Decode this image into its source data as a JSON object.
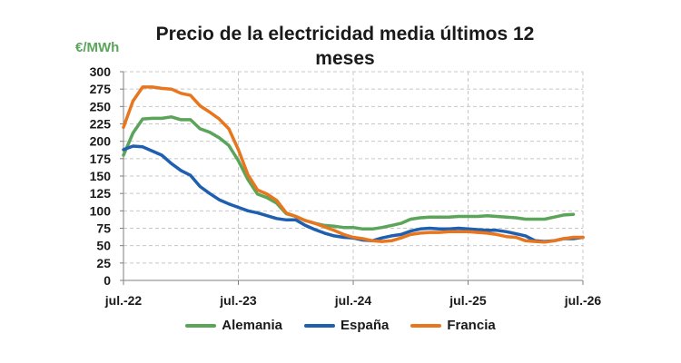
{
  "chart_data": {
    "type": "line",
    "title": "Precio de la electricidad media últimos 12 meses",
    "ylabel": "€/MWh",
    "ylim": [
      0,
      300
    ],
    "yticks": [
      0,
      25,
      50,
      75,
      100,
      125,
      150,
      175,
      200,
      225,
      250,
      275,
      300
    ],
    "xticks": [
      "jul.-22",
      "jul.-23",
      "jul.-24",
      "jul.-25",
      "jul.-26"
    ],
    "x_range_months": [
      "2022-07",
      "2026-07"
    ],
    "grid": true,
    "legend_position": "bottom",
    "series": [
      {
        "name": "Alemania",
        "color": "#5aa55a",
        "values": [
          [
            0,
            180
          ],
          [
            1,
            212
          ],
          [
            2,
            232
          ],
          [
            3,
            233
          ],
          [
            4,
            233
          ],
          [
            5,
            235
          ],
          [
            6,
            231
          ],
          [
            7,
            231
          ],
          [
            8,
            218
          ],
          [
            9,
            213
          ],
          [
            10,
            205
          ],
          [
            11,
            194
          ],
          [
            12,
            172
          ],
          [
            13,
            145
          ],
          [
            14,
            124
          ],
          [
            15,
            119
          ],
          [
            16,
            111
          ],
          [
            17,
            96
          ],
          [
            18,
            92
          ],
          [
            19,
            86
          ],
          [
            20,
            82
          ],
          [
            21,
            79
          ],
          [
            22,
            78
          ],
          [
            23,
            76
          ],
          [
            24,
            76
          ],
          [
            25,
            74
          ],
          [
            26,
            74
          ],
          [
            27,
            76
          ],
          [
            28,
            79
          ],
          [
            29,
            82
          ],
          [
            30,
            88
          ],
          [
            31,
            90
          ],
          [
            32,
            91
          ],
          [
            33,
            91
          ],
          [
            34,
            91
          ],
          [
            35,
            92
          ],
          [
            36,
            92
          ],
          [
            37,
            92
          ],
          [
            38,
            93
          ],
          [
            39,
            92
          ],
          [
            40,
            91
          ],
          [
            41,
            90
          ],
          [
            42,
            88
          ],
          [
            43,
            88
          ],
          [
            44,
            88
          ],
          [
            45,
            91
          ],
          [
            46,
            94
          ],
          [
            47,
            95
          ]
        ]
      },
      {
        "name": "España",
        "color": "#1f5fb0",
        "values": [
          [
            0,
            188
          ],
          [
            1,
            193
          ],
          [
            2,
            192
          ],
          [
            3,
            186
          ],
          [
            4,
            180
          ],
          [
            5,
            168
          ],
          [
            6,
            158
          ],
          [
            7,
            151
          ],
          [
            8,
            135
          ],
          [
            9,
            125
          ],
          [
            10,
            116
          ],
          [
            11,
            110
          ],
          [
            12,
            105
          ],
          [
            13,
            100
          ],
          [
            14,
            97
          ],
          [
            15,
            93
          ],
          [
            16,
            89
          ],
          [
            17,
            87
          ],
          [
            18,
            87
          ],
          [
            19,
            79
          ],
          [
            20,
            73
          ],
          [
            21,
            68
          ],
          [
            22,
            64
          ],
          [
            23,
            62
          ],
          [
            24,
            61
          ],
          [
            25,
            58
          ],
          [
            26,
            57
          ],
          [
            27,
            61
          ],
          [
            28,
            64
          ],
          [
            29,
            66
          ],
          [
            30,
            71
          ],
          [
            31,
            74
          ],
          [
            32,
            75
          ],
          [
            33,
            74
          ],
          [
            34,
            74
          ],
          [
            35,
            75
          ],
          [
            36,
            74
          ],
          [
            37,
            73
          ],
          [
            38,
            72
          ],
          [
            39,
            72
          ],
          [
            40,
            70
          ],
          [
            41,
            67
          ],
          [
            42,
            64
          ],
          [
            43,
            57
          ],
          [
            44,
            56
          ],
          [
            45,
            57
          ],
          [
            46,
            60
          ],
          [
            47,
            60
          ],
          [
            48,
            62
          ]
        ]
      },
      {
        "name": "Francia",
        "color": "#e8761e",
        "values": [
          [
            0,
            220
          ],
          [
            1,
            258
          ],
          [
            2,
            278
          ],
          [
            3,
            278
          ],
          [
            4,
            276
          ],
          [
            5,
            275
          ],
          [
            6,
            269
          ],
          [
            7,
            266
          ],
          [
            8,
            251
          ],
          [
            9,
            242
          ],
          [
            10,
            232
          ],
          [
            11,
            218
          ],
          [
            12,
            188
          ],
          [
            13,
            152
          ],
          [
            14,
            130
          ],
          [
            15,
            124
          ],
          [
            16,
            115
          ],
          [
            17,
            97
          ],
          [
            18,
            92
          ],
          [
            19,
            86
          ],
          [
            20,
            82
          ],
          [
            21,
            77
          ],
          [
            22,
            72
          ],
          [
            23,
            66
          ],
          [
            24,
            62
          ],
          [
            25,
            60
          ],
          [
            26,
            57
          ],
          [
            27,
            56
          ],
          [
            28,
            57
          ],
          [
            29,
            61
          ],
          [
            30,
            66
          ],
          [
            31,
            68
          ],
          [
            32,
            69
          ],
          [
            33,
            69
          ],
          [
            34,
            70
          ],
          [
            35,
            70
          ],
          [
            36,
            70
          ],
          [
            37,
            69
          ],
          [
            38,
            68
          ],
          [
            39,
            66
          ],
          [
            40,
            63
          ],
          [
            41,
            62
          ],
          [
            42,
            57
          ],
          [
            43,
            56
          ],
          [
            44,
            55
          ],
          [
            45,
            57
          ],
          [
            46,
            60
          ],
          [
            47,
            62
          ],
          [
            48,
            62
          ]
        ]
      }
    ]
  }
}
